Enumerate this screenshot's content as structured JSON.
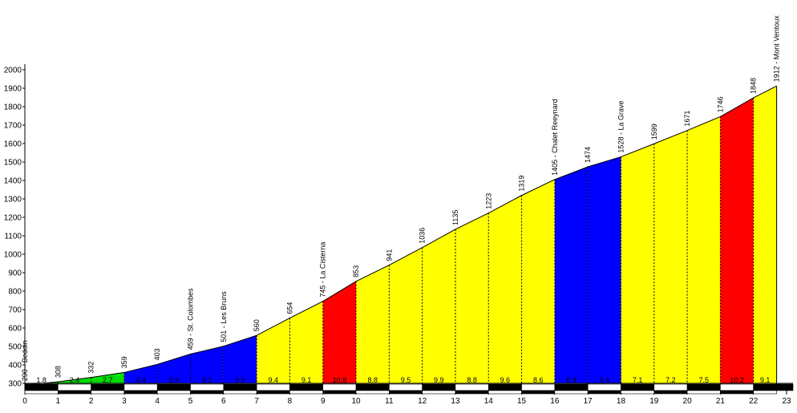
{
  "chart_data": {
    "type": "area",
    "title": "",
    "xlabel": "",
    "ylabel": "",
    "xlim": [
      0,
      23
    ],
    "ylim": [
      300,
      2000
    ],
    "y_ticks": [
      300,
      400,
      500,
      600,
      700,
      800,
      900,
      1000,
      1100,
      1200,
      1300,
      1400,
      1500,
      1600,
      1700,
      1800,
      1900,
      2000
    ],
    "x_ticks": [
      0,
      1,
      2,
      3,
      4,
      5,
      6,
      7,
      8,
      9,
      10,
      11,
      12,
      13,
      14,
      15,
      16,
      17,
      18,
      19,
      20,
      21,
      22,
      23
    ],
    "grid": false,
    "points": [
      {
        "x": 0,
        "y": 290,
        "label": "290 - Bedoin"
      },
      {
        "x": 1,
        "y": 308,
        "label": "308"
      },
      {
        "x": 2,
        "y": 332,
        "label": "332"
      },
      {
        "x": 3,
        "y": 359,
        "label": "359"
      },
      {
        "x": 4,
        "y": 403,
        "label": "403"
      },
      {
        "x": 5,
        "y": 459,
        "label": "459 - St. Colombes"
      },
      {
        "x": 6,
        "y": 501,
        "label": "501 - Les Bruns"
      },
      {
        "x": 7,
        "y": 560,
        "label": "560"
      },
      {
        "x": 8,
        "y": 654,
        "label": "654"
      },
      {
        "x": 9,
        "y": 745,
        "label": "745 - La Cisterna"
      },
      {
        "x": 10,
        "y": 853,
        "label": "853"
      },
      {
        "x": 11,
        "y": 941,
        "label": "941"
      },
      {
        "x": 12,
        "y": 1036,
        "label": "1036"
      },
      {
        "x": 13,
        "y": 1135,
        "label": "1135"
      },
      {
        "x": 14,
        "y": 1223,
        "label": "1223"
      },
      {
        "x": 15,
        "y": 1319,
        "label": "1319"
      },
      {
        "x": 16,
        "y": 1405,
        "label": "1405 - Chalet Reeynard"
      },
      {
        "x": 17,
        "y": 1474,
        "label": "1474"
      },
      {
        "x": 18,
        "y": 1528,
        "label": "1528 - La Grave"
      },
      {
        "x": 19,
        "y": 1599,
        "label": "1599"
      },
      {
        "x": 20,
        "y": 1671,
        "label": "1671"
      },
      {
        "x": 21,
        "y": 1746,
        "label": "1746"
      },
      {
        "x": 22,
        "y": 1848,
        "label": "1848"
      },
      {
        "x": 22.7,
        "y": 1912,
        "label": "1912 - Mont Ventoux"
      }
    ],
    "segments": [
      {
        "from": 0,
        "to": 1,
        "gradient": "1.8",
        "color": "#00dd00"
      },
      {
        "from": 1,
        "to": 2,
        "gradient": "2.4",
        "color": "#00dd00"
      },
      {
        "from": 2,
        "to": 3,
        "gradient": "2.7",
        "color": "#00dd00"
      },
      {
        "from": 3,
        "to": 4,
        "gradient": "4.4",
        "color": "#0000ff"
      },
      {
        "from": 4,
        "to": 5,
        "gradient": "5.6",
        "color": "#0000ff"
      },
      {
        "from": 5,
        "to": 6,
        "gradient": "4.2",
        "color": "#0000ff"
      },
      {
        "from": 6,
        "to": 7,
        "gradient": "5.9",
        "color": "#0000ff"
      },
      {
        "from": 7,
        "to": 8,
        "gradient": "9.4",
        "color": "#ffff00"
      },
      {
        "from": 8,
        "to": 9,
        "gradient": "9.1",
        "color": "#ffff00"
      },
      {
        "from": 9,
        "to": 10,
        "gradient": "10.8",
        "color": "#ff0000"
      },
      {
        "from": 10,
        "to": 11,
        "gradient": "8.8",
        "color": "#ffff00"
      },
      {
        "from": 11,
        "to": 12,
        "gradient": "9.5",
        "color": "#ffff00"
      },
      {
        "from": 12,
        "to": 13,
        "gradient": "9.9",
        "color": "#ffff00"
      },
      {
        "from": 13,
        "to": 14,
        "gradient": "8.8",
        "color": "#ffff00"
      },
      {
        "from": 14,
        "to": 15,
        "gradient": "9.6",
        "color": "#ffff00"
      },
      {
        "from": 15,
        "to": 16,
        "gradient": "8.6",
        "color": "#ffff00"
      },
      {
        "from": 16,
        "to": 17,
        "gradient": "6.9",
        "color": "#0000ff"
      },
      {
        "from": 17,
        "to": 18,
        "gradient": "5.4",
        "color": "#0000ff"
      },
      {
        "from": 18,
        "to": 19,
        "gradient": "7.1",
        "color": "#ffff00"
      },
      {
        "from": 19,
        "to": 20,
        "gradient": "7.2",
        "color": "#ffff00"
      },
      {
        "from": 20,
        "to": 21,
        "gradient": "7.5",
        "color": "#ffff00"
      },
      {
        "from": 21,
        "to": 22,
        "gradient": "10.2",
        "color": "#ff0000"
      },
      {
        "from": 22,
        "to": 22.7,
        "gradient": "9.1",
        "color": "#ffff00"
      }
    ]
  }
}
